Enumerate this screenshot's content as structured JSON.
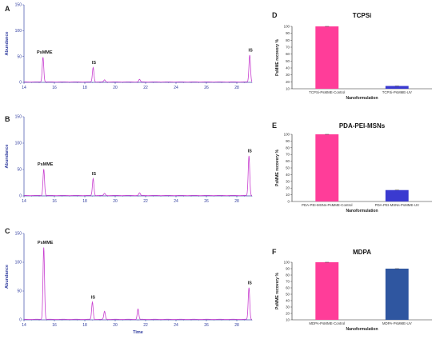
{
  "chart_data": [
    {
      "panel": "A",
      "type": "line",
      "xlim": [
        14,
        29
      ],
      "ylim": [
        0,
        150
      ],
      "xticks": [
        14,
        16,
        18,
        20,
        22,
        24,
        26,
        28
      ],
      "yticks": [
        0,
        50,
        100,
        150
      ],
      "ylabel": "Abundance",
      "xlabel": "",
      "line_color": "#c83fd0",
      "peaks": [
        {
          "x": 15.25,
          "y": 48,
          "label": "PsMME"
        },
        {
          "x": 18.55,
          "y": 28,
          "label": "IS"
        },
        {
          "x": 19.3,
          "y": 4,
          "label": ""
        },
        {
          "x": 21.6,
          "y": 5,
          "label": ""
        },
        {
          "x": 28.85,
          "y": 52,
          "label": "IS"
        }
      ]
    },
    {
      "panel": "B",
      "type": "line",
      "xlim": [
        14,
        29
      ],
      "ylim": [
        0,
        150
      ],
      "xticks": [
        14,
        16,
        18,
        20,
        22,
        24,
        26,
        28
      ],
      "yticks": [
        0,
        50,
        100,
        150
      ],
      "ylabel": "Abundance",
      "xlabel": "",
      "line_color": "#c83fd0",
      "peaks": [
        {
          "x": 15.3,
          "y": 50,
          "label": "PsMME"
        },
        {
          "x": 18.55,
          "y": 32,
          "label": "IS"
        },
        {
          "x": 19.3,
          "y": 4,
          "label": ""
        },
        {
          "x": 21.6,
          "y": 5,
          "label": ""
        },
        {
          "x": 28.8,
          "y": 75,
          "label": "IS"
        }
      ]
    },
    {
      "panel": "C",
      "type": "line",
      "xlim": [
        14,
        29
      ],
      "ylim": [
        0,
        150
      ],
      "xticks": [
        14,
        16,
        18,
        20,
        22,
        24,
        26,
        28
      ],
      "yticks": [
        0,
        50,
        100,
        150
      ],
      "ylabel": "Abundance",
      "xlabel": "Time",
      "line_color": "#c83fd0",
      "peaks": [
        {
          "x": 15.3,
          "y": 125,
          "label": "PsMME"
        },
        {
          "x": 18.5,
          "y": 30,
          "label": "IS"
        },
        {
          "x": 19.3,
          "y": 14,
          "label": ""
        },
        {
          "x": 21.5,
          "y": 18,
          "label": ""
        },
        {
          "x": 28.8,
          "y": 55,
          "label": "IS"
        }
      ]
    },
    {
      "panel": "D",
      "type": "bar",
      "title": "TCPSi",
      "categories": [
        "TCPSi-PsMME-Control",
        "TCPSi-PsMME-UV"
      ],
      "values": [
        100,
        14
      ],
      "colors": [
        "#ff3d99",
        "#3a3ad0"
      ],
      "ylabel": "PsMME recovery %",
      "xlabel": "Nanoformulation",
      "ylim": [
        10,
        100
      ],
      "yticks": [
        10,
        20,
        30,
        40,
        50,
        60,
        70,
        80,
        90,
        100
      ]
    },
    {
      "panel": "E",
      "type": "bar",
      "title": "PDA-PEI-MSNs",
      "categories": [
        "PDA-PEI-MSNs-PsMME-Control",
        "PDA-PEI-MSNs-PsMME-UV"
      ],
      "values": [
        100,
        17
      ],
      "colors": [
        "#ff3d99",
        "#3a3ad0"
      ],
      "ylabel": "PsMME recovery %",
      "xlabel": "Nanoformulation",
      "ylim": [
        0,
        100
      ],
      "yticks": [
        0,
        10,
        20,
        30,
        40,
        50,
        60,
        70,
        80,
        90,
        100
      ]
    },
    {
      "panel": "F",
      "type": "bar",
      "title": "MDPA",
      "categories": [
        "MDPA-PsMME-Control",
        "MDPA-PsMME-UV"
      ],
      "values": [
        100,
        90
      ],
      "colors": [
        "#ff3d99",
        "#2f56a0"
      ],
      "ylabel": "PsMME recovery %",
      "xlabel": "Nanoformulation",
      "ylim": [
        10,
        100
      ],
      "yticks": [
        10,
        20,
        30,
        40,
        50,
        60,
        70,
        80,
        90,
        100
      ]
    }
  ]
}
